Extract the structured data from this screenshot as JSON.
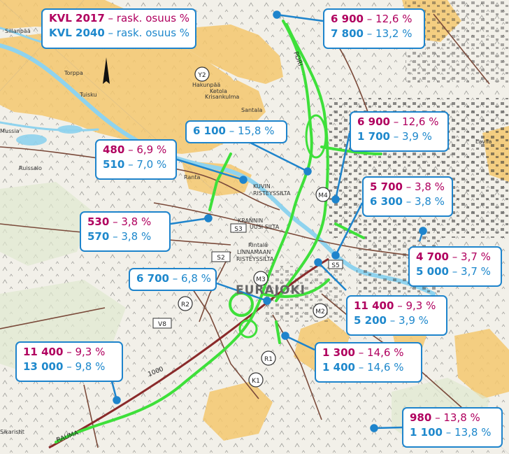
{
  "legend": {
    "row1_key": "KVL 2017",
    "row1_text": " – rask. osuus %",
    "row2_key": "KVL 2040",
    "row2_text": " – rask. osuus %",
    "color_2017": "#b0005f",
    "color_2040": "#1e88cc"
  },
  "places": {
    "eurajoki": "EURAJOKI",
    "sillanpaa": "Sillanpää",
    "torppa": "Torppa",
    "tuisku": "Tuisku",
    "muslia": "Mussia",
    "ruissalo": "Ruissalo",
    "ranta": "Ranta",
    "kuvin": "KUVIN",
    "risteyssilta_1": "RISTEYSSILTA",
    "krannin": "KRANNIN",
    "uusi_silta": "UUSI SILTA",
    "linnamaan": "LINNAMAAN",
    "risteyssilta_2": "RISTEYSSILTA",
    "rintala": "Rintala",
    "krisankulma": "Krisankulma",
    "ketola": "Ketola",
    "santala": "Santala",
    "hakunpaa": "Hakunpää",
    "rauma": "RAUMA",
    "pori": "PORI",
    "lavila": "Lavila",
    "sikaristit": "Sikaristit"
  },
  "markers": {
    "y2": "Y2",
    "m2": "M2",
    "m3": "M3",
    "m4": "M4",
    "r1": "R1",
    "r2": "R2",
    "k1": "K1",
    "s2": "S2",
    "s3": "S3",
    "v8": "V8",
    "s5": "S5",
    "road_1000": "1000"
  },
  "labels": [
    {
      "id": "north-2",
      "v2017": "6 900",
      "p2017": "12,6 %",
      "v2040": "7 800",
      "p2040": "13,2 %"
    },
    {
      "id": "east-1",
      "v2017": "6 900",
      "p2017": "12,6 %",
      "v2040": "1 700",
      "p2040": "3,9 %"
    },
    {
      "id": "ramp-north",
      "v2040": "6 100",
      "p2040": "15,8 %"
    },
    {
      "id": "west-mid",
      "v2017": "480",
      "p2017": "6,9 %",
      "v2040": "510",
      "p2040": "7,0 %"
    },
    {
      "id": "east-2",
      "v2017": "5 700",
      "p2017": "3,8 %",
      "v2040": "6 300",
      "p2040": "3,8 %"
    },
    {
      "id": "west-low",
      "v2017": "530",
      "p2017": "3,8 %",
      "v2040": "570",
      "p2040": "3,8 %"
    },
    {
      "id": "east-3",
      "v2017": "4 700",
      "p2017": "3,7 %",
      "v2040": "5 000",
      "p2040": "3,7 %"
    },
    {
      "id": "center",
      "v2040": "6 700",
      "p2040": "6,8 %"
    },
    {
      "id": "south-center",
      "v2017": "11 400",
      "p2017": "9,3 %",
      "v2040": "5 200",
      "p2040": "3,9 %"
    },
    {
      "id": "south-west",
      "v2017": "11 400",
      "p2017": "9,3 %",
      "v2040": "13 000",
      "p2040": "9,8 %"
    },
    {
      "id": "south-mid",
      "v2017": "1 300",
      "p2017": "14,6 %",
      "v2040": "1 400",
      "p2040": "14,6 %"
    },
    {
      "id": "south-east",
      "v2017": "980",
      "p2017": "13,8 %",
      "v2040": "1 100",
      "p2040": "13,8 %"
    }
  ],
  "colors": {
    "road_green": "#3ee03a",
    "label_border": "#1e84cc",
    "field_orange": "#f5c86e",
    "water": "#8fd3ee"
  }
}
